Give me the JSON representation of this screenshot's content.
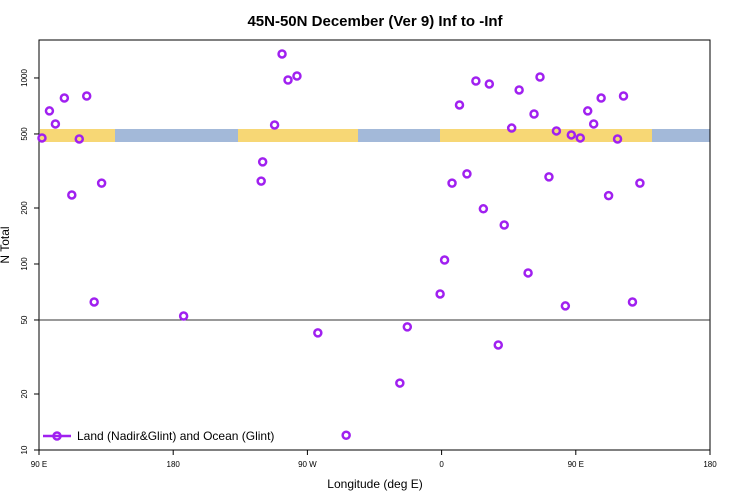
{
  "chart_data": {
    "type": "scatter",
    "title": "45N-50N December (Ver 9)   Inf to -Inf",
    "xlabel": "Longitude (deg E)",
    "ylabel": "N Total",
    "x": [
      -268,
      -263,
      -259,
      -253,
      -248,
      -243,
      -238,
      -233,
      -228,
      -173,
      -121,
      -120,
      -112,
      -107,
      -103,
      -97,
      -83,
      -64,
      -28,
      -23,
      -1,
      2,
      7,
      12,
      17,
      23,
      28,
      32,
      38,
      42,
      47,
      52,
      58,
      62,
      66,
      72,
      77,
      83,
      87,
      93,
      98,
      102,
      107,
      112,
      118,
      122,
      128,
      133
    ],
    "series": [
      {
        "name": "Land (Nadir&Glint) and Ocean (Glint)",
        "color": "#a020f0",
        "values": [
          476,
          665,
          566,
          780,
          235,
          470,
          800,
          62.5,
          272,
          52.5,
          279,
          354,
          559,
          1346,
          975,
          1025,
          42.6,
          12,
          22.9,
          45.9,
          69,
          105,
          272,
          716,
          305,
          963,
          198,
          928,
          36.7,
          162,
          538,
          862,
          89.5,
          640,
          1012,
          294,
          519,
          59.5,
          494,
          476,
          665,
          566,
          780,
          233,
          470,
          800,
          62.5,
          272
        ]
      }
    ],
    "xlim": [
      -270,
      180
    ],
    "xticks": [
      {
        "value": -270,
        "label": "90 E"
      },
      {
        "value": -180,
        "label": "180"
      },
      {
        "value": -90,
        "label": "90 W"
      },
      0,
      {
        "value": 90,
        "label": "90 E"
      },
      180
    ],
    "ylim": [
      10,
      1600
    ],
    "yticks": [
      10,
      20,
      50,
      100,
      200,
      500,
      1000
    ],
    "log_y": true,
    "reference_line": 50,
    "legend": "bottom-left"
  }
}
